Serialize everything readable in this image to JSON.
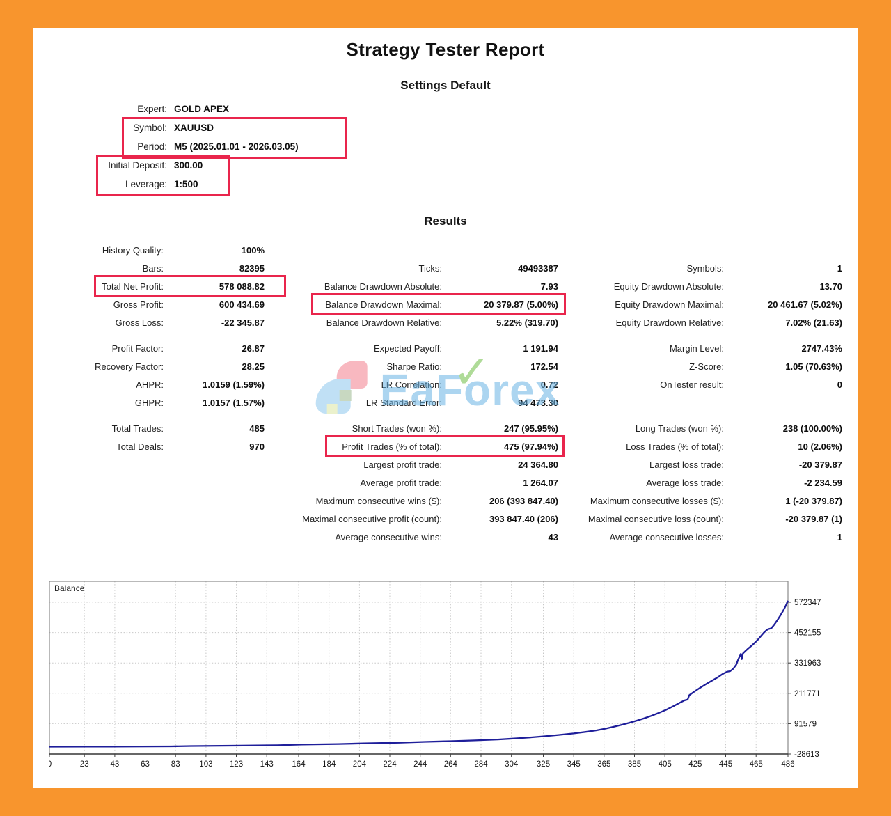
{
  "title": "Strategy Tester Report",
  "settings": {
    "heading": "Settings Default",
    "rows": [
      {
        "label": "Expert:",
        "value": "GOLD APEX"
      },
      {
        "label": "Symbol:",
        "value": "XAUUSD"
      },
      {
        "label": "Period:",
        "value": "M5 (2025.01.01 - 2026.03.05)"
      },
      {
        "label": "Initial Deposit:",
        "value": "300.00"
      },
      {
        "label": "Leverage:",
        "value": "1:500"
      }
    ]
  },
  "results": {
    "heading": "Results",
    "columns": [
      {
        "rows": [
          {
            "label": "History Quality:",
            "value": "100%"
          },
          {
            "label": "Bars:",
            "value": "82395"
          },
          {
            "label": "Total Net Profit:",
            "value": "578 088.82",
            "boxed": true
          },
          {
            "label": "Gross Profit:",
            "value": "600 434.69"
          },
          {
            "label": "Gross Loss:",
            "value": "-22 345.87"
          },
          {
            "type": "gap"
          },
          {
            "label": "Profit Factor:",
            "value": "26.87"
          },
          {
            "label": "Recovery Factor:",
            "value": "28.25"
          },
          {
            "label": "AHPR:",
            "value": "1.0159 (1.59%)"
          },
          {
            "label": "GHPR:",
            "value": "1.0157 (1.57%)"
          },
          {
            "type": "gap"
          },
          {
            "label": "Total Trades:",
            "value": "485"
          },
          {
            "label": "Total Deals:",
            "value": "970"
          }
        ]
      },
      {
        "rows": [
          {
            "label": "",
            "value": ""
          },
          {
            "label": "Ticks:",
            "value": "49493387"
          },
          {
            "label": "Balance Drawdown Absolute:",
            "value": "7.93"
          },
          {
            "label": "Balance Drawdown Maximal:",
            "value": "20 379.87 (5.00%)",
            "boxed": true
          },
          {
            "label": "Balance Drawdown Relative:",
            "value": "5.22% (319.70)"
          },
          {
            "type": "gap"
          },
          {
            "label": "Expected Payoff:",
            "value": "1 191.94"
          },
          {
            "label": "Sharpe Ratio:",
            "value": "172.54"
          },
          {
            "label": "LR Correlation:",
            "value": "0.72"
          },
          {
            "label": "LR Standard Error:",
            "value": "94 473.30"
          },
          {
            "type": "gap"
          },
          {
            "label": "Short Trades (won %):",
            "value": "247 (95.95%)"
          },
          {
            "label": "Profit Trades (% of total):",
            "value": "475 (97.94%)",
            "boxed": true
          },
          {
            "label": "Largest profit trade:",
            "value": "24 364.80"
          },
          {
            "label": "Average profit trade:",
            "value": "1 264.07"
          },
          {
            "label": "Maximum consecutive wins ($):",
            "value": "206 (393 847.40)"
          },
          {
            "label": "Maximal consecutive profit (count):",
            "value": "393 847.40 (206)"
          },
          {
            "label": "Average consecutive wins:",
            "value": "43"
          }
        ]
      },
      {
        "rows": [
          {
            "label": "",
            "value": ""
          },
          {
            "label": "Symbols:",
            "value": "1"
          },
          {
            "label": "Equity Drawdown Absolute:",
            "value": "13.70"
          },
          {
            "label": "Equity Drawdown Maximal:",
            "value": "20 461.67 (5.02%)"
          },
          {
            "label": "Equity Drawdown Relative:",
            "value": "7.02% (21.63)"
          },
          {
            "type": "gap"
          },
          {
            "label": "Margin Level:",
            "value": "2747.43%"
          },
          {
            "label": "Z-Score:",
            "value": "1.05 (70.63%)"
          },
          {
            "label": "OnTester result:",
            "value": "0"
          },
          {
            "label": "",
            "value": ""
          },
          {
            "type": "gap"
          },
          {
            "label": "Long Trades (won %):",
            "value": "238 (100.00%)"
          },
          {
            "label": "Loss Trades (% of total):",
            "value": "10 (2.06%)"
          },
          {
            "label": "Largest loss trade:",
            "value": "-20 379.87"
          },
          {
            "label": "Average loss trade:",
            "value": "-2 234.59"
          },
          {
            "label": "Maximum consecutive losses ($):",
            "value": "1 (-20 379.87)"
          },
          {
            "label": "Maximal consecutive loss (count):",
            "value": "-20 379.87 (1)"
          },
          {
            "label": "Average consecutive losses:",
            "value": "1"
          }
        ]
      }
    ]
  },
  "watermark": {
    "text_pre": "EaF",
    "text_o": "o",
    "text_post": "rex",
    "check": "✓"
  },
  "chart_data": {
    "type": "line",
    "title": "Balance",
    "series_name": "Balance",
    "x_ticks": [
      0,
      23,
      43,
      63,
      83,
      103,
      123,
      143,
      164,
      184,
      204,
      224,
      244,
      264,
      284,
      304,
      325,
      345,
      365,
      385,
      405,
      425,
      445,
      465,
      486
    ],
    "y_ticks": [
      572347,
      452155,
      331963,
      211771,
      91579,
      -28613
    ],
    "xlim": [
      0,
      486
    ],
    "ylim": [
      -28613,
      655000
    ],
    "grid": "dotted",
    "points": [
      [
        0,
        300
      ],
      [
        40,
        900
      ],
      [
        80,
        1800
      ],
      [
        93,
        3200
      ],
      [
        120,
        4600
      ],
      [
        150,
        6200
      ],
      [
        166,
        8800
      ],
      [
        190,
        11000
      ],
      [
        207,
        13600
      ],
      [
        230,
        16200
      ],
      [
        247,
        19500
      ],
      [
        264,
        22500
      ],
      [
        280,
        25500
      ],
      [
        295,
        29000
      ],
      [
        305,
        32500
      ],
      [
        315,
        36500
      ],
      [
        325,
        41500
      ],
      [
        335,
        47000
      ],
      [
        345,
        53000
      ],
      [
        353,
        59000
      ],
      [
        360,
        65000
      ],
      [
        366,
        72000
      ],
      [
        371,
        79000
      ],
      [
        376,
        86000
      ],
      [
        381,
        94000
      ],
      [
        386,
        102500
      ],
      [
        391,
        112000
      ],
      [
        396,
        122500
      ],
      [
        401,
        134000
      ],
      [
        406,
        147000
      ],
      [
        411,
        162000
      ],
      [
        415,
        175000
      ],
      [
        418,
        184000
      ],
      [
        420,
        187000
      ],
      [
        421,
        204000
      ],
      [
        424,
        217000
      ],
      [
        428,
        233000
      ],
      [
        432,
        248000
      ],
      [
        436,
        262000
      ],
      [
        440,
        276000
      ],
      [
        443,
        288000
      ],
      [
        446,
        297500
      ],
      [
        448,
        299500
      ],
      [
        450,
        309000
      ],
      [
        452,
        326000
      ],
      [
        453,
        342000
      ],
      [
        454,
        355000
      ],
      [
        455,
        368000
      ],
      [
        455.6,
        347000
      ],
      [
        456.4,
        370000
      ],
      [
        458,
        379000
      ],
      [
        460,
        390000
      ],
      [
        462,
        400000
      ],
      [
        464,
        411000
      ],
      [
        466,
        423000
      ],
      [
        468,
        437000
      ],
      [
        470,
        451000
      ],
      [
        472,
        462000
      ],
      [
        473,
        466000
      ],
      [
        475,
        469000
      ],
      [
        477,
        484000
      ],
      [
        479,
        501000
      ],
      [
        481,
        520000
      ],
      [
        483,
        541000
      ],
      [
        484.5,
        558000
      ],
      [
        486,
        578389
      ]
    ]
  },
  "colors": {
    "frame_orange": "#f8952d",
    "highlight_red": "#e9254c",
    "curve_navy": "#1e1e9a",
    "watermark_blue": "#6ab4e4",
    "check_green": "#6fbf44"
  }
}
